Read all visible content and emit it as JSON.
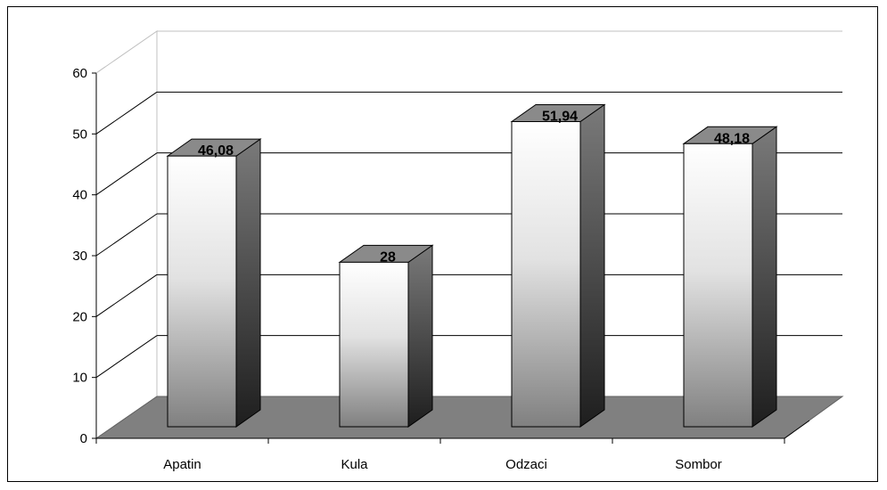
{
  "chart_data": {
    "type": "bar",
    "categories": [
      "Apatin",
      "Kula",
      "Odzaci",
      "Sombor"
    ],
    "values": [
      46.08,
      28,
      51.94,
      48.18
    ],
    "value_labels": [
      "46,08",
      "28",
      "51,94",
      "48,18"
    ],
    "title": "",
    "xlabel": "",
    "ylabel": "",
    "ylim": [
      0,
      60
    ],
    "yticks": [
      0,
      10,
      20,
      30,
      40,
      50,
      60
    ],
    "grid": true,
    "style": "3d-column",
    "colors": {
      "bar_front_light": "#ffffff",
      "bar_front_dark": "#808080",
      "bar_side": "#404040",
      "bar_top": "#8a8a8a",
      "floor": "#808080",
      "gridline": "#000000"
    }
  }
}
